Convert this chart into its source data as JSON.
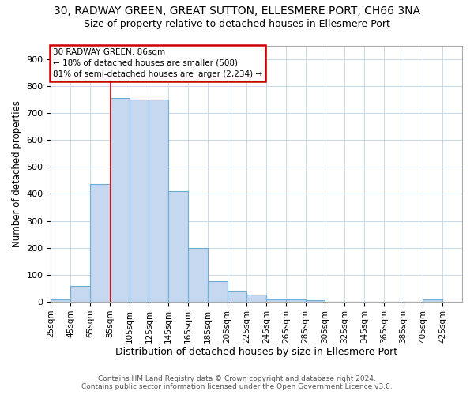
{
  "title": "30, RADWAY GREEN, GREAT SUTTON, ELLESMERE PORT, CH66 3NA",
  "subtitle": "Size of property relative to detached houses in Ellesmere Port",
  "xlabel": "Distribution of detached houses by size in Ellesmere Port",
  "ylabel": "Number of detached properties",
  "footer_line1": "Contains HM Land Registry data © Crown copyright and database right 2024.",
  "footer_line2": "Contains public sector information licensed under the Open Government Licence v3.0.",
  "bin_starts": [
    25,
    45,
    65,
    85,
    105,
    125,
    145,
    165,
    185,
    205,
    225,
    245,
    265,
    285,
    305,
    325,
    345,
    365,
    385,
    405
  ],
  "bar_heights": [
    10,
    58,
    435,
    755,
    750,
    750,
    410,
    200,
    75,
    42,
    28,
    10,
    10,
    5,
    0,
    0,
    0,
    0,
    0,
    8
  ],
  "bar_color": "#c5d8ef",
  "bar_edge_color": "#6aaed6",
  "annotation_line1": "30 RADWAY GREEN: 86sqm",
  "annotation_line2": "← 18% of detached houses are smaller (508)",
  "annotation_line3": "81% of semi-detached houses are larger (2,234) →",
  "annotation_box_facecolor": "#ffffff",
  "annotation_box_edgecolor": "#cc0000",
  "vline_x": 86,
  "vline_color": "#cc0000",
  "xlim": [
    25,
    445
  ],
  "ylim": [
    0,
    950
  ],
  "yticks": [
    0,
    100,
    200,
    300,
    400,
    500,
    600,
    700,
    800,
    900
  ],
  "background_color": "#ffffff",
  "grid_color": "#c8d8ec",
  "title_fontsize": 10,
  "subtitle_fontsize": 9,
  "ylabel_fontsize": 8.5,
  "xlabel_fontsize": 9,
  "tick_fontsize": 8,
  "xtick_fontsize": 7.5,
  "footer_fontsize": 6.5
}
